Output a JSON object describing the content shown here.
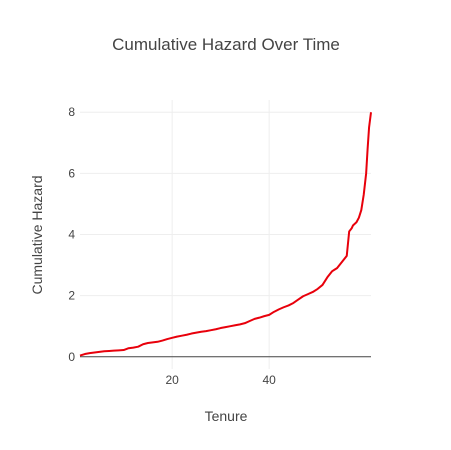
{
  "chart_data": {
    "type": "line",
    "title": "Cumulative Hazard Over Time",
    "xlabel": "Tenure",
    "ylabel": "Cumulative Hazard",
    "xlim": [
      1,
      61
    ],
    "ylim": [
      -0.4,
      8.4
    ],
    "x_ticks": [
      20,
      40
    ],
    "y_ticks": [
      0,
      2,
      4,
      6,
      8
    ],
    "grid": true,
    "legend": "none",
    "series": [
      {
        "color": "#e8000b",
        "x": [
          1,
          2,
          3,
          4,
          5,
          6,
          7,
          8,
          9,
          10,
          11,
          12,
          13,
          14,
          15,
          16,
          17,
          18,
          19,
          20,
          21,
          22,
          23,
          24,
          25,
          26,
          27,
          28,
          29,
          30,
          31,
          32,
          33,
          34,
          35,
          36,
          37,
          38,
          39,
          40,
          41,
          42,
          43,
          44,
          45,
          46,
          47,
          48,
          49,
          50,
          51,
          52,
          53,
          53.5,
          54,
          55,
          56,
          56.5,
          57,
          57.3,
          58,
          58.5,
          59,
          59.5,
          60,
          60.3,
          60.6,
          61
        ],
        "y": [
          0.04,
          0.09,
          0.12,
          0.14,
          0.16,
          0.18,
          0.19,
          0.2,
          0.21,
          0.22,
          0.28,
          0.3,
          0.33,
          0.41,
          0.45,
          0.47,
          0.49,
          0.53,
          0.58,
          0.62,
          0.66,
          0.69,
          0.72,
          0.76,
          0.79,
          0.82,
          0.84,
          0.87,
          0.9,
          0.94,
          0.97,
          1.0,
          1.03,
          1.06,
          1.1,
          1.17,
          1.24,
          1.28,
          1.33,
          1.37,
          1.47,
          1.55,
          1.62,
          1.68,
          1.76,
          1.87,
          1.98,
          2.05,
          2.12,
          2.22,
          2.35,
          2.6,
          2.8,
          2.85,
          2.9,
          3.1,
          3.3,
          4.1,
          4.2,
          4.3,
          4.4,
          4.55,
          4.8,
          5.3,
          6.0,
          6.8,
          7.5,
          8.0
        ]
      }
    ]
  }
}
